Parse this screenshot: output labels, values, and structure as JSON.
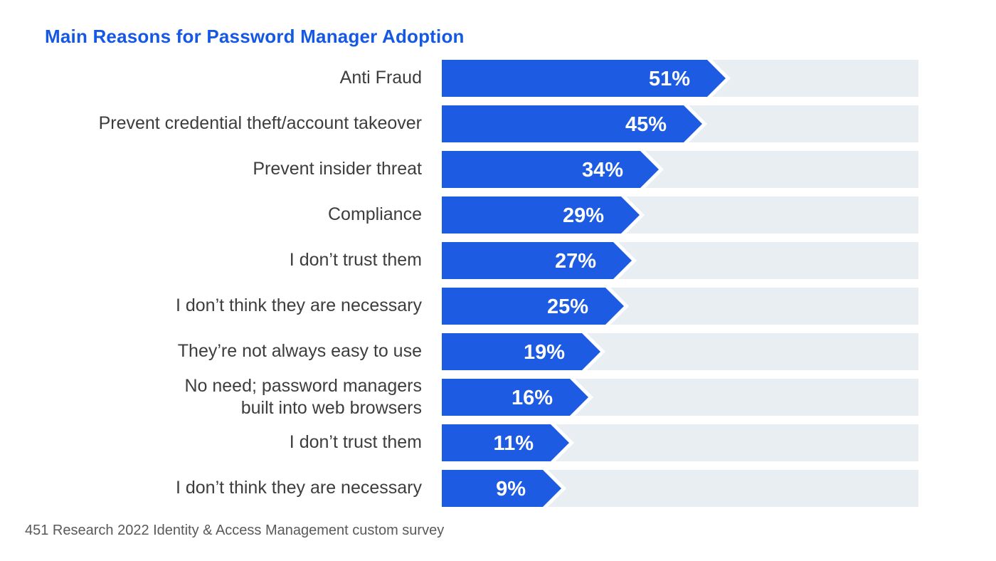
{
  "title": "Main Reasons for Password Manager Adoption",
  "source_note": "451 Research 2022 Identity & Access Management custom survey",
  "colors": {
    "bar": "#1d5ce2",
    "bar_value_text": "#ffffff",
    "track": "#e9eef3",
    "title_text": "#1458e3",
    "category_text": "#3d3d3d",
    "source_text": "#595959",
    "background": "#ffffff"
  },
  "chart_data": {
    "type": "bar",
    "orientation": "horizontal",
    "title": "Main Reasons for Password Manager Adoption",
    "categories": [
      "Anti Fraud",
      "Prevent credential theft/account takeover",
      "Prevent insider threat",
      "Compliance",
      "I don’t trust them",
      "I don’t think they are necessary",
      "They’re not always easy to use",
      "No need; password managers\nbuilt into web browsers",
      "I don’t trust them",
      "I don’t think they are necessary"
    ],
    "values": [
      51,
      45,
      34,
      29,
      27,
      25,
      19,
      16,
      11,
      9
    ],
    "value_labels": [
      "51%",
      "45%",
      "34%",
      "29%",
      "27%",
      "25%",
      "19%",
      "16%",
      "11%",
      "9%"
    ],
    "unit": "%",
    "xlim": [
      0,
      100
    ],
    "grid": false,
    "legend": false,
    "bar_style": "arrow-tip",
    "source": "451 Research 2022 Identity & Access Management custom survey"
  }
}
